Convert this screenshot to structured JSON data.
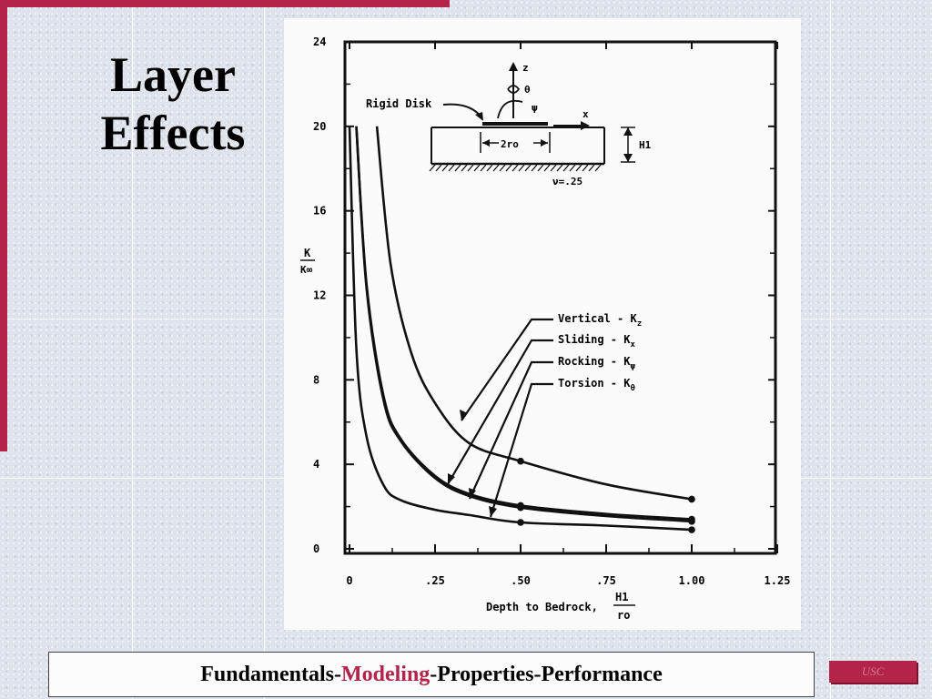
{
  "slide": {
    "title_line1": "Layer",
    "title_line2": "Effects",
    "footer_part1": "Fundamentals-",
    "footer_accent": "Modeling",
    "footer_part2": "-Properties-Performance",
    "badge": "USC",
    "accent_color": "#b3234a"
  },
  "chart_data": {
    "type": "line",
    "ylabel_num": "K",
    "ylabel_den": "K∞",
    "xlabel_text": "Depth to Bedrock,",
    "xlabel_num": "H1",
    "xlabel_den": "ro",
    "xlim": [
      0,
      1.25
    ],
    "ylim": [
      0,
      24
    ],
    "xticks": [
      {
        "value": 0,
        "label": "0"
      },
      {
        "value": 0.25,
        "label": ".25"
      },
      {
        "value": 0.5,
        "label": ".50"
      },
      {
        "value": 0.75,
        "label": ".75"
      },
      {
        "value": 1.0,
        "label": "1.00"
      },
      {
        "value": 1.25,
        "label": "1.25"
      }
    ],
    "yticks": [
      {
        "value": 0,
        "label": "0"
      },
      {
        "value": 4,
        "label": "4"
      },
      {
        "value": 8,
        "label": "8"
      },
      {
        "value": 12,
        "label": "12"
      },
      {
        "value": 16,
        "label": "16"
      },
      {
        "value": 20,
        "label": "20"
      },
      {
        "value": 24,
        "label": "24"
      }
    ],
    "series": [
      {
        "name": "Vertical - Kz",
        "x": [
          0.08,
          0.12,
          0.18,
          0.25,
          0.35,
          0.5,
          0.75,
          1.0
        ],
        "y": [
          20,
          13.5,
          9.3,
          6.9,
          5.0,
          4.15,
          3.05,
          2.35
        ]
      },
      {
        "name": "Sliding - Kx",
        "x": [
          0.02,
          0.05,
          0.1,
          0.15,
          0.25,
          0.35,
          0.5,
          0.75,
          1.0
        ],
        "y": [
          20,
          12.5,
          7.2,
          5.2,
          3.45,
          2.6,
          2.05,
          1.65,
          1.4
        ]
      },
      {
        "name": "Rocking - Kψ",
        "x": [
          0.02,
          0.05,
          0.1,
          0.15,
          0.25,
          0.35,
          0.5,
          0.75,
          1.0
        ],
        "y": [
          20,
          12.3,
          7.0,
          5.1,
          3.35,
          2.5,
          1.95,
          1.55,
          1.3
        ]
      },
      {
        "name": "Torsion - Kθ",
        "x": [
          0.0,
          0.02,
          0.05,
          0.1,
          0.15,
          0.25,
          0.35,
          0.5,
          0.75,
          1.0
        ],
        "y": [
          20,
          9.5,
          5.3,
          3.0,
          2.3,
          1.85,
          1.6,
          1.25,
          1.1,
          0.9
        ]
      }
    ],
    "markers": [
      {
        "x": 0.5,
        "y": 4.15
      },
      {
        "x": 1.0,
        "y": 2.35
      },
      {
        "x": 0.5,
        "y": 2.05
      },
      {
        "x": 1.0,
        "y": 1.4
      },
      {
        "x": 0.5,
        "y": 1.95
      },
      {
        "x": 1.0,
        "y": 1.3
      },
      {
        "x": 0.5,
        "y": 1.25
      },
      {
        "x": 1.0,
        "y": 0.9
      }
    ],
    "legend_entries": [
      "Vertical - K",
      "Sliding - K",
      "Rocking - K",
      "Torsion - K"
    ],
    "legend_subscripts": [
      "z",
      "x",
      "ψ",
      "θ"
    ],
    "inset": {
      "disk_label": "Rigid Disk",
      "z_label": "z",
      "theta_label": "θ",
      "psi_label": "ψ",
      "x_label": "x",
      "width_label": "2ro",
      "depth_label": "H1",
      "poisson_label": "ν=.25"
    }
  }
}
